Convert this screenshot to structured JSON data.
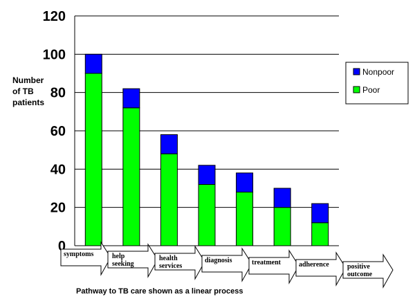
{
  "chart_data": {
    "type": "bar",
    "stacked": true,
    "categories": [
      [
        "symptoms"
      ],
      [
        "help",
        "seeking"
      ],
      [
        "health",
        "services"
      ],
      [
        "diagnosis"
      ],
      [
        "treatment"
      ],
      [
        "adherence"
      ],
      [
        "positive",
        "outcome"
      ]
    ],
    "series": [
      {
        "name": "Poor",
        "color": "#00ff00",
        "values": [
          90,
          72,
          48,
          32,
          28,
          20,
          12
        ]
      },
      {
        "name": "Nonpoor",
        "color": "#0000ff",
        "values": [
          10,
          10,
          10,
          10,
          10,
          10,
          10
        ]
      }
    ],
    "ylabel": [
      "Number",
      "of TB",
      "patients"
    ],
    "ylim": [
      0,
      120
    ],
    "yticks": [
      0,
      20,
      40,
      60,
      80,
      100,
      120
    ],
    "grid": true,
    "legend_position": "right",
    "legend_order": [
      "Nonpoor",
      "Poor"
    ],
    "caption": "Pathway to TB care shown as a linear process"
  }
}
